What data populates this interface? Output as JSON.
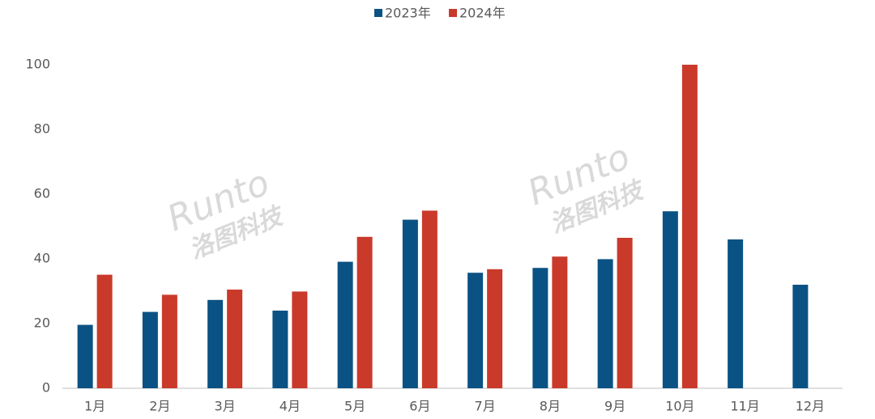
{
  "chart_data": {
    "type": "bar",
    "categories": [
      "1月",
      "2月",
      "3月",
      "4月",
      "5月",
      "6月",
      "7月",
      "8月",
      "9月",
      "10月",
      "11月",
      "12月"
    ],
    "series": [
      {
        "name": "2023年",
        "color": "#0b5284",
        "values": [
          19.6,
          23.6,
          27.3,
          24.0,
          39.1,
          52.1,
          35.7,
          37.2,
          39.9,
          54.7,
          46.0,
          32.0
        ]
      },
      {
        "name": "2024年",
        "color": "#c93a2b",
        "values": [
          35.1,
          28.9,
          30.5,
          29.9,
          46.8,
          54.9,
          36.8,
          40.7,
          46.5,
          100.0,
          null,
          null
        ]
      }
    ],
    "ylim": [
      0,
      100
    ],
    "yticks": [
      0,
      20,
      40,
      60,
      80,
      100
    ],
    "grid": false,
    "legend": "top",
    "watermark": [
      "Runto",
      "洛图科技"
    ]
  }
}
